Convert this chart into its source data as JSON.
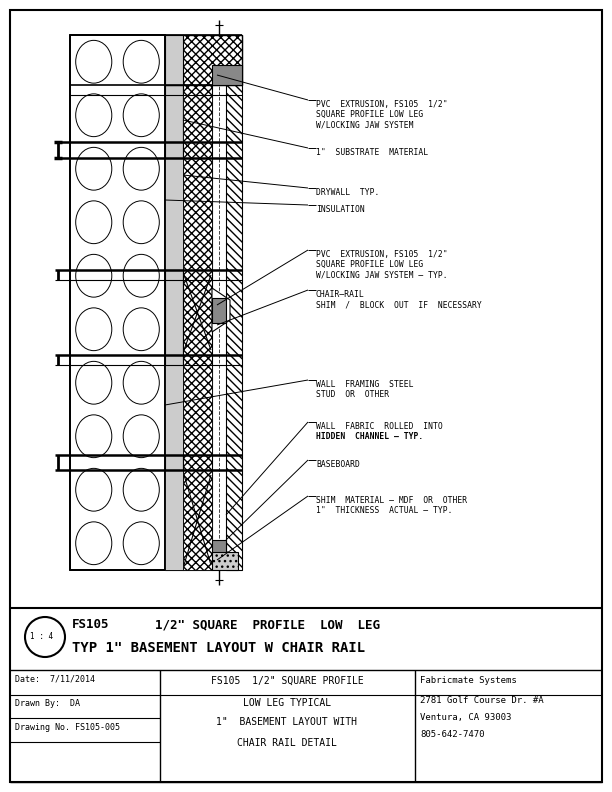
{
  "bg_color": "#ffffff",
  "line_color": "#000000",
  "title_line1_left": "FS105",
  "title_line1_right": "1/2\" SQUARE  PROFILE  LOW  LEG",
  "title_line2": "TYP 1\" BASEMENT LAYOUT W CHAIR RAIL",
  "title_scale": "1 : 4",
  "footer_left_lines": [
    "Date:  7/11/2014",
    "Drawn By:  DA",
    "Drawing No. FS105-005"
  ],
  "footer_mid_lines": [
    "FS105  1/2\" SQUARE PROFILE",
    "LOW LEG TYPICAL",
    "1\"  BASEMENT LAYOUT WITH",
    "CHAIR RAIL DETAIL"
  ],
  "footer_right_lines": [
    "Fabricmate Systems",
    "2781 Golf Course Dr. #A",
    "Ventura, CA 93003",
    "805-642-7470"
  ],
  "ann_pvc_top": [
    "PVC  EXTRUSION, FS105  1/2\"",
    "SQUARE PROFILE LOW LEG",
    "W/LOCKING JAW SYSTEM"
  ],
  "ann_substrate": [
    "1\"  SUBSTRATE  MATERIAL"
  ],
  "ann_drywall": [
    "DRYWALL  TYP."
  ],
  "ann_insulation": [
    "INSULATION"
  ],
  "ann_pvc_mid": [
    "PVC  EXTRUSION, FS105  1/2\"",
    "SQUARE PROFILE LOW LEG",
    "W/LOCKING JAW SYSTEM – TYP."
  ],
  "ann_chair": [
    "CHAIR–RAIL",
    "SHIM  /  BLOCK  OUT  IF  NECESSARY"
  ],
  "ann_framing": [
    "WALL  FRAMING  STEEL",
    "STUD  OR  OTHER"
  ],
  "ann_fabric": [
    "WALL  FABRIC  ROLLED  INTO",
    "HIDDEN  CHANNEL – TYP."
  ],
  "ann_baseboard": [
    "BASEBOARD"
  ],
  "ann_shim": [
    "SHIM  MATERIAL – MDF  OR  OTHER",
    "1\"  THICKNESS  ACTUAL – TYP."
  ]
}
